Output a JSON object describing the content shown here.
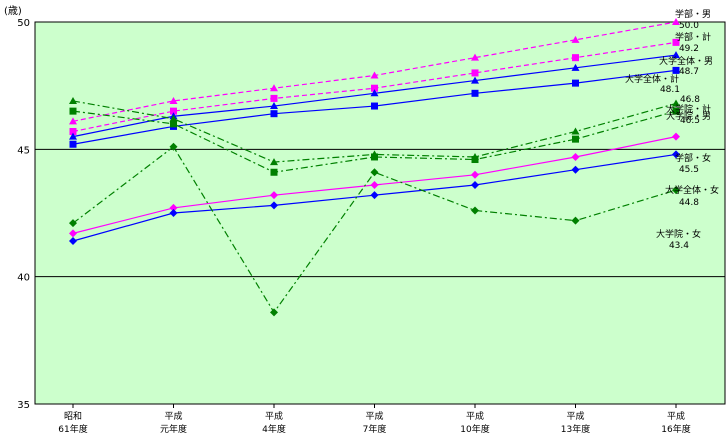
{
  "chart_data": {
    "type": "line",
    "unit_label": "(歳)",
    "categories": [
      [
        "昭和",
        "61年度"
      ],
      [
        "平成",
        "元年度"
      ],
      [
        "平成",
        "4年度"
      ],
      [
        "平成",
        "7年度"
      ],
      [
        "平成",
        "10年度"
      ],
      [
        "平成",
        "13年度"
      ],
      [
        "平成",
        "16年度"
      ]
    ],
    "ylim": [
      35,
      50
    ],
    "yticks": [
      35,
      40,
      45,
      50
    ],
    "grid": {
      "horizontal_lines": [
        40,
        45
      ]
    },
    "colors": {
      "plot_bg": "#ccffcc",
      "grid": "#000000"
    },
    "series": [
      {
        "name": "学部・男",
        "value_label": "50.0",
        "color": "#ff00ff",
        "dash": "dashed",
        "marker": "triangle",
        "values": [
          46.1,
          46.9,
          47.4,
          47.9,
          48.6,
          49.3,
          50.0
        ]
      },
      {
        "name": "学部・計",
        "value_label": "49.2",
        "color": "#ff00ff",
        "dash": "dashed",
        "marker": "square",
        "values": [
          45.7,
          46.5,
          47.0,
          47.4,
          48.0,
          48.6,
          49.2
        ]
      },
      {
        "name": "大学全体・男",
        "value_label": "48.7",
        "color": "#0000ff",
        "dash": "solid",
        "marker": "triangle",
        "values": [
          45.5,
          46.3,
          46.7,
          47.2,
          47.7,
          48.2,
          48.7
        ]
      },
      {
        "name": "大学全体・計",
        "value_label": "48.1",
        "color": "#0000ff",
        "dash": "solid",
        "marker": "square",
        "values": [
          45.2,
          45.9,
          46.4,
          46.7,
          47.2,
          47.6,
          48.1
        ]
      },
      {
        "name": "大学院・男",
        "value_label": "46.8",
        "color": "#008000",
        "dash": "dashdot",
        "marker": "triangle",
        "values": [
          46.9,
          46.2,
          44.5,
          44.8,
          44.7,
          45.7,
          46.8
        ]
      },
      {
        "name": "大学院・計",
        "value_label": "46.5",
        "color": "#008000",
        "dash": "dashdot",
        "marker": "square",
        "values": [
          46.5,
          46.0,
          44.1,
          44.7,
          44.6,
          45.4,
          46.5
        ]
      },
      {
        "name": "学部・女",
        "value_label": "45.5",
        "color": "#ff00ff",
        "dash": "solid",
        "marker": "diamond",
        "values": [
          41.7,
          42.7,
          43.2,
          43.6,
          44.0,
          44.7,
          45.5
        ]
      },
      {
        "name": "大学全体・女",
        "value_label": "44.8",
        "color": "#0000ff",
        "dash": "solid",
        "marker": "diamond",
        "values": [
          41.4,
          42.5,
          42.8,
          43.2,
          43.6,
          44.2,
          44.8
        ]
      },
      {
        "name": "大学院・女",
        "value_label": "43.4",
        "color": "#008000",
        "dash": "dashdot",
        "marker": "diamond",
        "values": [
          42.1,
          45.1,
          38.6,
          44.1,
          42.6,
          42.2,
          43.4
        ]
      }
    ]
  }
}
